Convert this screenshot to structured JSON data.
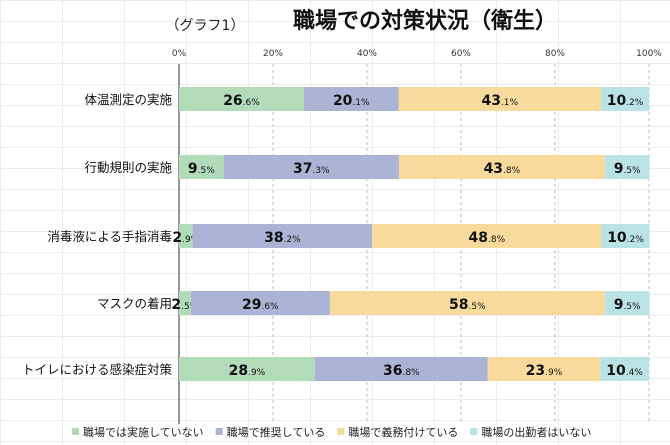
{
  "chart_data": {
    "type": "bar",
    "orientation": "horizontal-stacked-100",
    "title": "職場での対策状況（衛生）",
    "subtitle": "（グラフ1）",
    "xlim": [
      0,
      100
    ],
    "xticks": [
      "0%",
      "20%",
      "40%",
      "60%",
      "80%",
      "100%"
    ],
    "categories": [
      "体温測定の実施",
      "行動規則の実施",
      "消毒液による手指消毒",
      "マスクの着用",
      "トイレにおける感染症対策"
    ],
    "series": [
      {
        "name": "職場では実施していない",
        "color": "#b1dbb9",
        "values": [
          26.6,
          9.5,
          2.9,
          2.5,
          28.9
        ]
      },
      {
        "name": "職場で推奨している",
        "color": "#abb4d4",
        "values": [
          20.1,
          37.3,
          38.2,
          29.6,
          36.8
        ]
      },
      {
        "name": "職場で義務付けている",
        "color": "#f8da9c",
        "values": [
          43.1,
          43.8,
          48.8,
          58.5,
          23.9
        ]
      },
      {
        "name": "職場の出勤者はいない",
        "color": "#bae3e5",
        "values": [
          10.2,
          9.5,
          10.2,
          9.5,
          10.4
        ]
      }
    ],
    "legend": "bottom"
  }
}
